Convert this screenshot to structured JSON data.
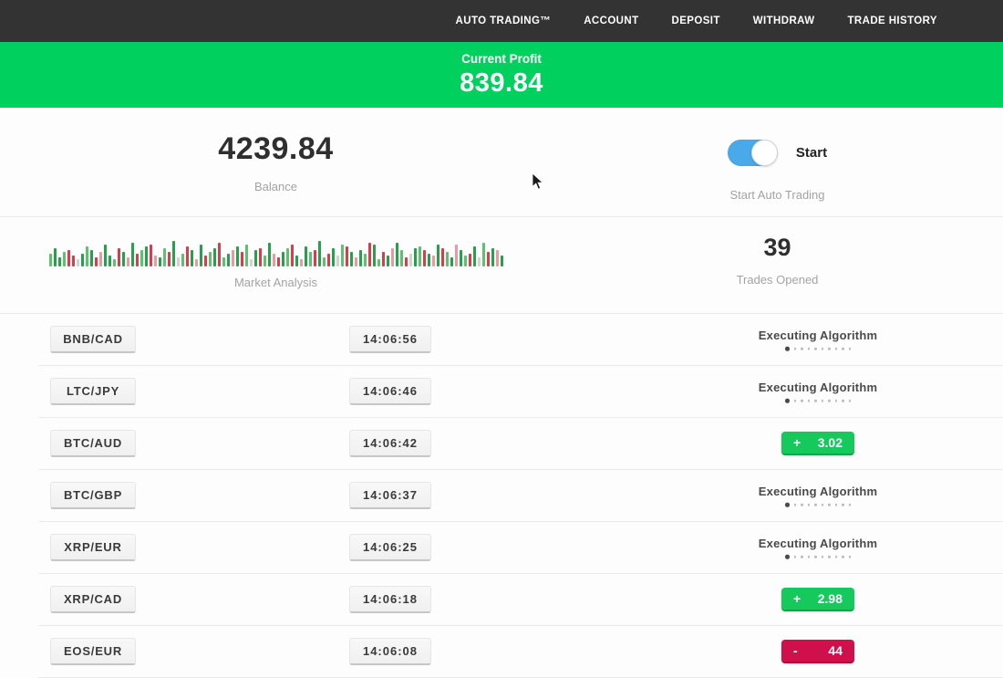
{
  "navbar": {
    "items": [
      {
        "label": "AUTO TRADING™"
      },
      {
        "label": "ACCOUNT"
      },
      {
        "label": "DEPOSIT"
      },
      {
        "label": "WITHDRAW"
      },
      {
        "label": "TRADE HISTORY"
      }
    ]
  },
  "profit_banner": {
    "label": "Current Profit",
    "value": "839.84"
  },
  "summary": {
    "balance_value": "4239.84",
    "balance_label": "Balance",
    "toggle_label": "Start",
    "toggle_state": "on",
    "toggle_caption": "Start Auto Trading",
    "market_label": "Market Analysis",
    "trades_value": "39",
    "trades_label": "Trades Opened"
  },
  "chart_data": {
    "type": "bar",
    "title": "Market Analysis",
    "note": "decorative red/green market ticker bars, bottom-aligned, heights in px, color codes: G dark-green, g light-green, R red, r light-red, x pale",
    "bars": [
      "g14",
      "G20",
      "G10",
      "g16",
      "R18",
      "R12",
      "x8",
      "G14",
      "g22",
      "G18",
      "R10",
      "r16",
      "G24",
      "G12",
      "g8",
      "R20",
      "G16",
      "r10",
      "G26",
      "R14",
      "g18",
      "G22",
      "R24",
      "r12",
      "G10",
      "g20",
      "R16",
      "G28",
      "x10",
      "g14",
      "R22",
      "G18",
      "r8",
      "G24",
      "R12",
      "g16",
      "G20",
      "R26",
      "g10",
      "G14",
      "r18",
      "G22",
      "R16",
      "g24",
      "x8",
      "G18",
      "R20",
      "g12",
      "G26",
      "r14",
      "R10",
      "G16",
      "g20",
      "R24",
      "G12",
      "r8",
      "G22",
      "g16",
      "R18",
      "G28",
      "g10",
      "R14",
      "G20",
      "x12",
      "g24",
      "R22",
      "G16",
      "r10",
      "G18",
      "g14",
      "R26",
      "G24",
      "g8",
      "R16",
      "G12",
      "r20",
      "G26",
      "g18",
      "R10",
      "x14",
      "G20",
      "g22",
      "R18",
      "G14",
      "r12",
      "G24",
      "R20",
      "g16",
      "G10",
      "r24",
      "G18",
      "g12",
      "R14",
      "G22",
      "x10",
      "g26",
      "R16",
      "G20",
      "r18",
      "G12"
    ]
  },
  "trades": [
    {
      "pair": "BNB/CAD",
      "time": "14:06:56",
      "status": "executing",
      "status_label": "Executing Algorithm"
    },
    {
      "pair": "LTC/JPY",
      "time": "14:06:46",
      "status": "executing",
      "status_label": "Executing Algorithm"
    },
    {
      "pair": "BTC/AUD",
      "time": "14:06:42",
      "status": "profit",
      "result_sign": "+",
      "result_value": "3.02"
    },
    {
      "pair": "BTC/GBP",
      "time": "14:06:37",
      "status": "executing",
      "status_label": "Executing Algorithm"
    },
    {
      "pair": "XRP/EUR",
      "time": "14:06:25",
      "status": "executing",
      "status_label": "Executing Algorithm"
    },
    {
      "pair": "XRP/CAD",
      "time": "14:06:18",
      "status": "profit",
      "result_sign": "+",
      "result_value": "2.98"
    },
    {
      "pair": "EOS/EUR",
      "time": "14:06:08",
      "status": "loss",
      "result_sign": "-",
      "result_value": "44"
    }
  ],
  "status_dots_count": 10,
  "colors": {
    "navbar_bg": "#333333",
    "banner_green": "#00d05e",
    "badge_green": "#16c95d",
    "badge_red": "#d0104c",
    "toggle_blue": "#4aa9e9",
    "bar_palette": {
      "G": "#27a04c",
      "g": "#5cc26e",
      "R": "#d63e4e",
      "r": "#e89aa0",
      "x": "#cfd4cf"
    }
  }
}
